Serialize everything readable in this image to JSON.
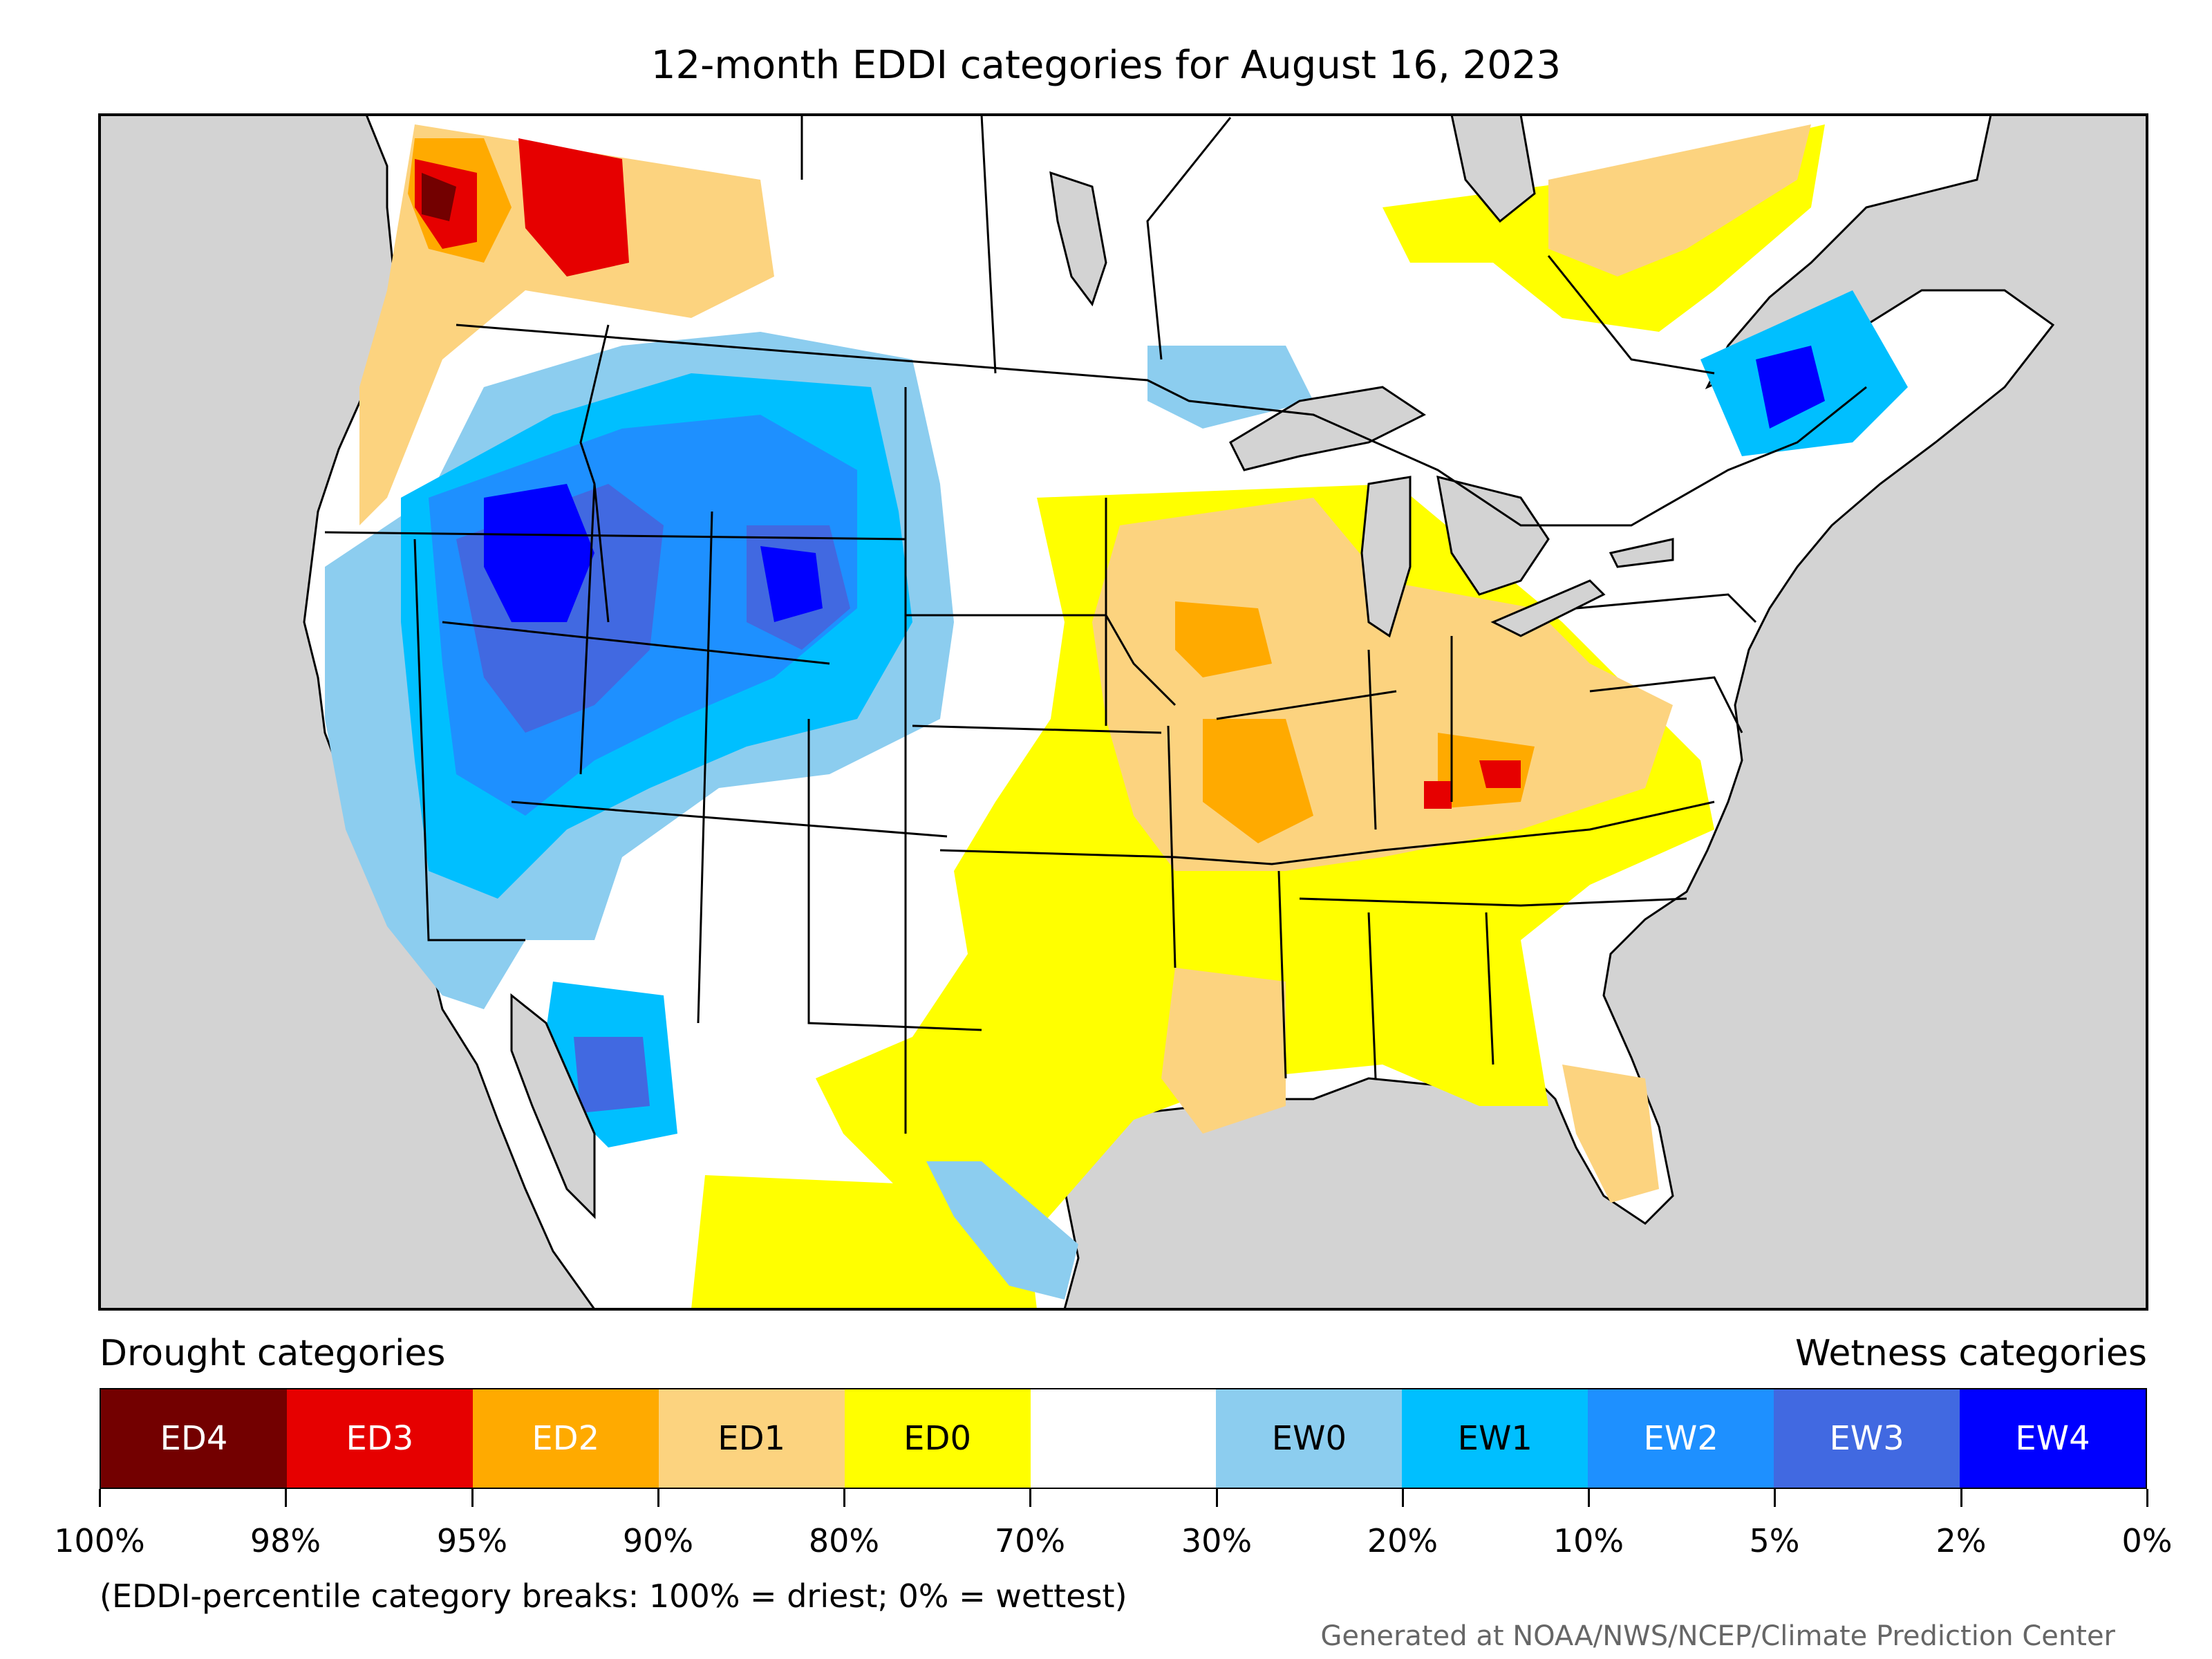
{
  "title": "12-month EDDI categories for August 16, 2023",
  "legend": {
    "drought_label": "Drought categories",
    "wetness_label": "Wetness categories",
    "categories": [
      {
        "label": "ED4",
        "color": "#730000",
        "text_color": "#ffffff"
      },
      {
        "label": "ED3",
        "color": "#e60000",
        "text_color": "#ffffff"
      },
      {
        "label": "ED2",
        "color": "#ffaa00",
        "text_color": "#ffffff"
      },
      {
        "label": "ED1",
        "color": "#fcd37f",
        "text_color": "#000000"
      },
      {
        "label": "ED0",
        "color": "#ffff00",
        "text_color": "#000000"
      },
      {
        "label": "",
        "color": "#ffffff",
        "text_color": "#000000"
      },
      {
        "label": "EW0",
        "color": "#8ccdef",
        "text_color": "#000000"
      },
      {
        "label": "EW1",
        "color": "#00bfff",
        "text_color": "#000000"
      },
      {
        "label": "EW2",
        "color": "#1e90ff",
        "text_color": "#ffffff"
      },
      {
        "label": "EW3",
        "color": "#4169e1",
        "text_color": "#ffffff"
      },
      {
        "label": "EW4",
        "color": "#0000ff",
        "text_color": "#ffffff"
      }
    ],
    "ticks": [
      "100%",
      "98%",
      "95%",
      "90%",
      "80%",
      "70%",
      "30%",
      "20%",
      "10%",
      "5%",
      "2%",
      "0%"
    ]
  },
  "note": "(EDDI-percentile category breaks: 100% = driest; 0% = wettest)",
  "credit": "Generated at NOAA/NWS/NCEP/Climate Prediction Center",
  "map": {
    "ocean_color": "#d3d3d3",
    "land_color": "#ffffff",
    "border_color": "#000000"
  }
}
